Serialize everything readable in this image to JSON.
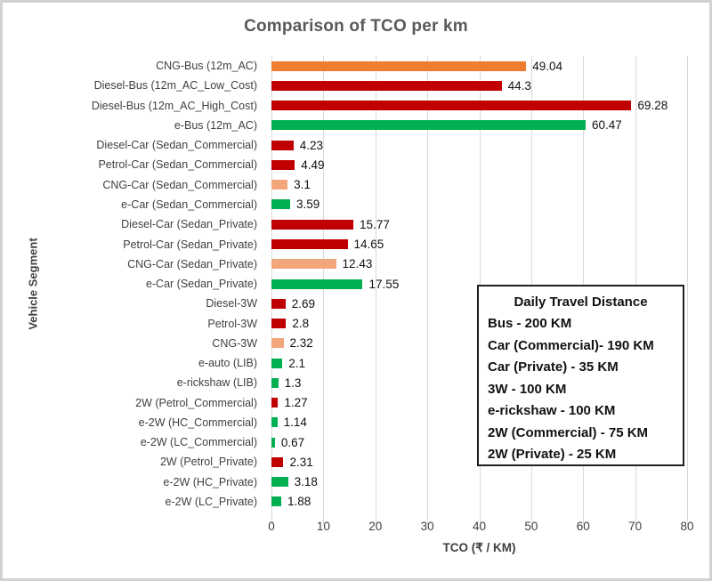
{
  "window": {
    "title": "Comparison of TCO per km"
  },
  "colors": {
    "dark_red": "#c00000",
    "orange": "#ed7d31",
    "light_orange": "#f4a67b",
    "green": "#00b050",
    "gridline": "#d9d9d9",
    "title_gray": "#595959",
    "axis_text": "#3f3f3f"
  },
  "chart_data": {
    "type": "bar",
    "orientation": "horizontal",
    "title": "Comparison of TCO per km",
    "xlabel": "TCO (₹ / KM)",
    "ylabel": "Vehicle Segment",
    "xlim": [
      0,
      80
    ],
    "xticks": [
      "0",
      "10",
      "20",
      "30",
      "40",
      "50",
      "60",
      "70",
      "80"
    ],
    "grid": true,
    "legend": "none",
    "categories": [
      "CNG-Bus (12m_AC)",
      "Diesel-Bus (12m_AC_Low_Cost)",
      "Diesel-Bus (12m_AC_High_Cost)",
      "e-Bus (12m_AC)",
      "Diesel-Car (Sedan_Commercial)",
      "Petrol-Car (Sedan_Commercial)",
      "CNG-Car (Sedan_Commercial)",
      "e-Car (Sedan_Commercial)",
      "Diesel-Car (Sedan_Private)",
      "Petrol-Car (Sedan_Private)",
      "CNG-Car (Sedan_Private)",
      "e-Car (Sedan_Private)",
      "Diesel-3W",
      "Petrol-3W",
      "CNG-3W",
      "e-auto (LIB)",
      "e-rickshaw (LIB)",
      "2W (Petrol_Commercial)",
      "e-2W (HC_Commercial)",
      "e-2W (LC_Commercial)",
      "2W (Petrol_Private)",
      "e-2W (HC_Private)",
      "e-2W (LC_Private)"
    ],
    "values": [
      49.04,
      44.3,
      69.28,
      60.47,
      4.23,
      4.49,
      3.1,
      3.59,
      15.77,
      14.65,
      12.43,
      17.55,
      2.69,
      2.8,
      2.32,
      2.1,
      1.3,
      1.27,
      1.14,
      0.67,
      2.31,
      3.18,
      1.88
    ],
    "value_labels": [
      "49.04",
      "44.3",
      "69.28",
      "60.47",
      "4.23",
      "4.49",
      "3.1",
      "3.59",
      "15.77",
      "14.65",
      "12.43",
      "17.55",
      "2.69",
      "2.8",
      "2.32",
      "2.1",
      "1.3",
      "1.27",
      "1.14",
      "0.67",
      "2.31",
      "3.18",
      "1.88"
    ],
    "bar_colors": [
      "#ed7d31",
      "#c00000",
      "#c00000",
      "#00b050",
      "#c00000",
      "#c00000",
      "#f4a67b",
      "#00b050",
      "#c00000",
      "#c00000",
      "#f4a67b",
      "#00b050",
      "#c00000",
      "#c00000",
      "#f4a67b",
      "#00b050",
      "#00b050",
      "#c00000",
      "#00b050",
      "#00b050",
      "#c00000",
      "#00b050",
      "#00b050"
    ],
    "annotation_box": {
      "title": "Daily Travel Distance",
      "lines": [
        "Bus - 200 KM",
        "Car (Commercial)- 190 KM",
        "Car (Private) - 35 KM",
        "3W - 100 KM",
        "e-rickshaw - 100 KM",
        "2W (Commercial) - 75 KM",
        "2W (Private) - 25 KM"
      ]
    }
  }
}
